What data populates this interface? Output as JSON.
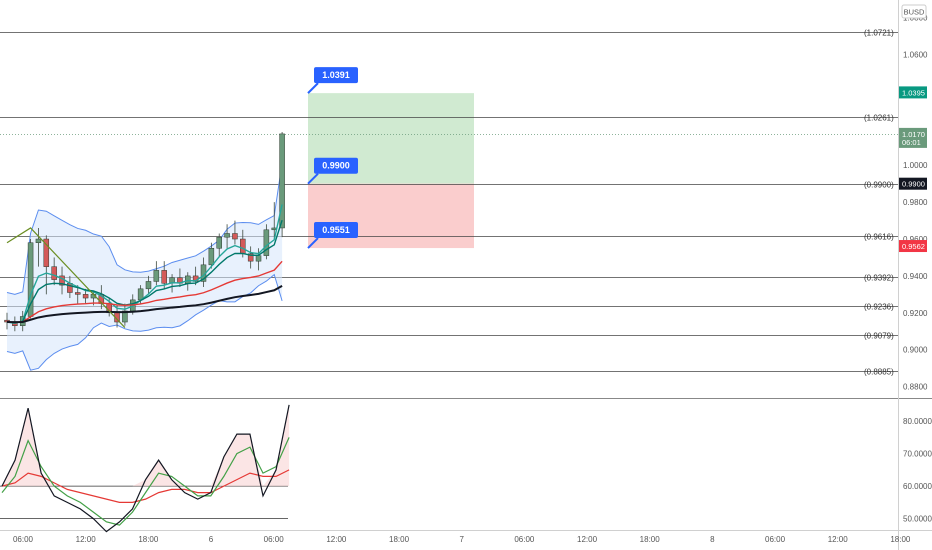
{
  "symbol": "BUSD",
  "colors": {
    "up": "#6a9a7b",
    "down": "#d45a5a",
    "green_price": "#089981",
    "black_price": "#131722",
    "red_price": "#f23645",
    "tag": "#2962ff",
    "profit_zone": "#c8e6c9",
    "loss_zone": "#f9c4c4",
    "ma_red": "#e53935",
    "ma_black": "#131722",
    "ma_teal": "#26a69a",
    "ma_dark_teal": "#00796b",
    "band": "#5b8def",
    "stoch_k": "#131722",
    "stoch_d": "#43a047",
    "stoch_signal": "#e53935"
  },
  "chart_data": [
    {
      "type": "candlestick",
      "panel": "price",
      "y_ticks": [
        "1.0800",
        "1.0600",
        "1.0395",
        "1.0170",
        "1.0000",
        "0.9900",
        "0.9800",
        "0.9600",
        "0.9562",
        "0.9400",
        "0.9200",
        "0.9000",
        "0.8800"
      ],
      "ylim": [
        0.8738,
        1.0896
      ],
      "x_ticks": [
        "06:00",
        "12:00",
        "18:00",
        "6",
        "06:00",
        "12:00",
        "18:00",
        "7",
        "06:00",
        "12:00",
        "18:00",
        "8",
        "06:00",
        "12:00",
        "18:00"
      ],
      "level_labels": [
        {
          "label": "(1.0721)",
          "value": 1.0721
        },
        {
          "label": "(1.0261)",
          "value": 1.0261
        },
        {
          "label": "(0.9900)",
          "value": 0.99
        },
        {
          "label": "(0.9616)",
          "value": 0.9616
        },
        {
          "label": "(0.9392)",
          "value": 0.9392
        },
        {
          "label": "(0.9236)",
          "value": 0.9236
        },
        {
          "label": "(0.9079)",
          "value": 0.9079
        },
        {
          "label": "(0.8885)",
          "value": 0.8885
        }
      ],
      "current_price": {
        "value": 1.017,
        "label": "1.0170",
        "countdown": "06:01"
      },
      "price_labels": [
        {
          "value": 1.0395,
          "label": "1.0395",
          "color": "#089981"
        },
        {
          "value": 0.99,
          "label": "0.9900",
          "color": "#131722"
        },
        {
          "value": 0.9562,
          "label": "0.9562",
          "color": "#f23645"
        }
      ],
      "position": {
        "target": 1.0391,
        "target_label": "1.0391",
        "entry": 0.99,
        "entry_label": "0.9900",
        "stop": 0.9551,
        "stop_label": "0.9551"
      },
      "candles": [
        {
          "t": 0,
          "o": 0.916,
          "h": 0.92,
          "l": 0.911,
          "c": 0.915
        },
        {
          "t": 1,
          "o": 0.915,
          "h": 0.918,
          "l": 0.91,
          "c": 0.913
        },
        {
          "t": 2,
          "o": 0.913,
          "h": 0.921,
          "l": 0.91,
          "c": 0.918
        },
        {
          "t": 3,
          "o": 0.918,
          "h": 0.96,
          "l": 0.917,
          "c": 0.958
        },
        {
          "t": 4,
          "o": 0.958,
          "h": 0.966,
          "l": 0.945,
          "c": 0.96
        },
        {
          "t": 5,
          "o": 0.96,
          "h": 0.962,
          "l": 0.93,
          "c": 0.945
        },
        {
          "t": 6,
          "o": 0.945,
          "h": 0.95,
          "l": 0.935,
          "c": 0.938
        },
        {
          "t": 7,
          "o": 0.94,
          "h": 0.945,
          "l": 0.93,
          "c": 0.935
        },
        {
          "t": 8,
          "o": 0.936,
          "h": 0.94,
          "l": 0.928,
          "c": 0.931
        },
        {
          "t": 9,
          "o": 0.931,
          "h": 0.935,
          "l": 0.925,
          "c": 0.93
        },
        {
          "t": 10,
          "o": 0.93,
          "h": 0.933,
          "l": 0.925,
          "c": 0.928
        },
        {
          "t": 11,
          "o": 0.928,
          "h": 0.932,
          "l": 0.924,
          "c": 0.93
        },
        {
          "t": 12,
          "o": 0.93,
          "h": 0.935,
          "l": 0.922,
          "c": 0.925
        },
        {
          "t": 13,
          "o": 0.925,
          "h": 0.928,
          "l": 0.918,
          "c": 0.92
        },
        {
          "t": 14,
          "o": 0.92,
          "h": 0.924,
          "l": 0.912,
          "c": 0.915
        },
        {
          "t": 15,
          "o": 0.915,
          "h": 0.925,
          "l": 0.913,
          "c": 0.921
        },
        {
          "t": 16,
          "o": 0.921,
          "h": 0.93,
          "l": 0.919,
          "c": 0.927
        },
        {
          "t": 17,
          "o": 0.927,
          "h": 0.935,
          "l": 0.925,
          "c": 0.933
        },
        {
          "t": 18,
          "o": 0.933,
          "h": 0.94,
          "l": 0.93,
          "c": 0.937
        },
        {
          "t": 19,
          "o": 0.937,
          "h": 0.948,
          "l": 0.935,
          "c": 0.943
        },
        {
          "t": 20,
          "o": 0.943,
          "h": 0.948,
          "l": 0.933,
          "c": 0.936
        },
        {
          "t": 21,
          "o": 0.936,
          "h": 0.941,
          "l": 0.931,
          "c": 0.939
        },
        {
          "t": 22,
          "o": 0.939,
          "h": 0.944,
          "l": 0.934,
          "c": 0.936
        },
        {
          "t": 23,
          "o": 0.936,
          "h": 0.942,
          "l": 0.932,
          "c": 0.94
        },
        {
          "t": 24,
          "o": 0.94,
          "h": 0.945,
          "l": 0.935,
          "c": 0.937
        },
        {
          "t": 25,
          "o": 0.937,
          "h": 0.95,
          "l": 0.934,
          "c": 0.946
        },
        {
          "t": 26,
          "o": 0.946,
          "h": 0.958,
          "l": 0.944,
          "c": 0.955
        },
        {
          "t": 27,
          "o": 0.955,
          "h": 0.963,
          "l": 0.95,
          "c": 0.961
        },
        {
          "t": 28,
          "o": 0.961,
          "h": 0.968,
          "l": 0.955,
          "c": 0.963
        },
        {
          "t": 29,
          "o": 0.963,
          "h": 0.97,
          "l": 0.957,
          "c": 0.96
        },
        {
          "t": 30,
          "o": 0.96,
          "h": 0.965,
          "l": 0.95,
          "c": 0.952
        },
        {
          "t": 31,
          "o": 0.952,
          "h": 0.956,
          "l": 0.944,
          "c": 0.948
        },
        {
          "t": 32,
          "o": 0.948,
          "h": 0.955,
          "l": 0.943,
          "c": 0.951
        },
        {
          "t": 33,
          "o": 0.951,
          "h": 0.968,
          "l": 0.949,
          "c": 0.965
        },
        {
          "t": 34,
          "o": 0.965,
          "h": 0.98,
          "l": 0.96,
          "c": 0.966
        },
        {
          "t": 35,
          "o": 0.966,
          "h": 1.018,
          "l": 0.961,
          "c": 1.017
        }
      ]
    },
    {
      "type": "line",
      "panel": "oscillator",
      "y_ticks": [
        "80.0000",
        "70.0000",
        "60.0000",
        "50.0000"
      ],
      "ylim": [
        46.5,
        86.5
      ],
      "bands": [
        60,
        50
      ],
      "series_k": [
        60,
        68,
        84,
        64,
        57,
        55,
        53,
        50,
        46,
        49,
        53,
        62,
        68,
        62,
        58,
        56,
        58,
        69,
        76,
        76,
        57,
        65,
        85
      ],
      "series_d": [
        58,
        63,
        74,
        66,
        60,
        57,
        55,
        52,
        49,
        48,
        52,
        58,
        64,
        63,
        60,
        57,
        57,
        63,
        70,
        72,
        64,
        66,
        75
      ],
      "series_signal": [
        60,
        61,
        64,
        63,
        61,
        59,
        58,
        57,
        56,
        55,
        55,
        56,
        58,
        59,
        59,
        58,
        58,
        60,
        62,
        64,
        63,
        63,
        65
      ]
    }
  ]
}
